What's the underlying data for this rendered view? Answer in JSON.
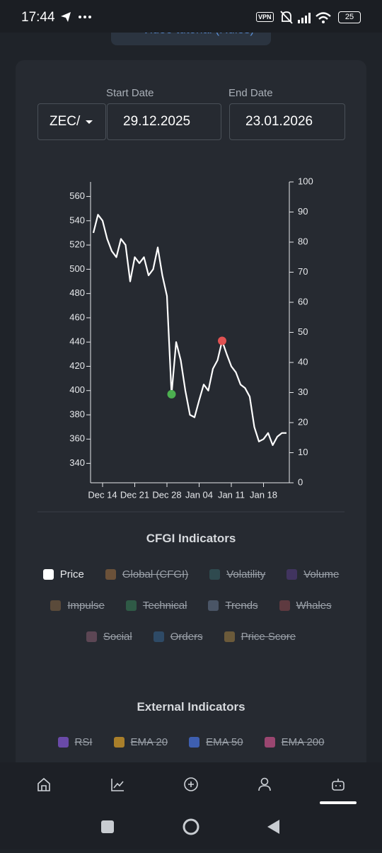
{
  "status_bar": {
    "time": "17:44",
    "vpn": "VPN",
    "battery": "25"
  },
  "tutorial_button": "Video tutorial (Rules)",
  "filters": {
    "pair": "ZEC/",
    "start_label": "Start Date",
    "start_value": "29.12.2025",
    "end_label": "End Date",
    "end_value": "23.01.2026"
  },
  "chart_data": {
    "type": "line",
    "categories": [
      null,
      null,
      "Dec 14",
      null,
      null,
      null,
      null,
      null,
      null,
      "Dec 21",
      null,
      null,
      null,
      null,
      null,
      null,
      "Dec 28",
      null,
      null,
      null,
      null,
      null,
      null,
      "Jan 04",
      null,
      null,
      null,
      null,
      null,
      null,
      "Jan 11",
      null,
      null,
      null,
      null,
      null,
      null,
      "Jan 18",
      null,
      null,
      null,
      null,
      null
    ],
    "series": [
      {
        "name": "Price",
        "color": "#ffffff",
        "values": [
          530,
          545,
          540,
          525,
          515,
          510,
          525,
          520,
          490,
          510,
          505,
          510,
          495,
          500,
          518,
          495,
          478,
          397,
          440,
          425,
          400,
          380,
          378,
          392,
          405,
          400,
          418,
          425,
          441,
          430,
          420,
          415,
          405,
          402,
          395,
          370,
          358,
          360,
          365,
          355,
          362,
          365,
          365
        ]
      },
      {
        "color": "#4caf50",
        "values": [
          null,
          null,
          null,
          null,
          null,
          null,
          null,
          null,
          null,
          null,
          null,
          null,
          null,
          null,
          null,
          null,
          null,
          397,
          null,
          null,
          null,
          null,
          null,
          null,
          null,
          null,
          null,
          null,
          null,
          null,
          null,
          null,
          null,
          null,
          null,
          null,
          null,
          null,
          null,
          null,
          null,
          null,
          null
        ]
      },
      {
        "color": "#e05252",
        "values": [
          null,
          null,
          null,
          null,
          null,
          null,
          null,
          null,
          null,
          null,
          null,
          null,
          null,
          null,
          null,
          null,
          null,
          null,
          null,
          null,
          null,
          null,
          null,
          null,
          null,
          null,
          null,
          null,
          441,
          null,
          null,
          null,
          null,
          null,
          null,
          null,
          null,
          null,
          null,
          null,
          null,
          null,
          null
        ]
      }
    ],
    "ylim": [
      324,
      572
    ],
    "yticks": [
      340,
      360,
      380,
      400,
      420,
      440,
      460,
      480,
      500,
      520,
      540,
      560
    ],
    "y2lim": [
      0,
      100
    ],
    "y2ticks": [
      0,
      10,
      20,
      30,
      40,
      50,
      60,
      70,
      80,
      90,
      100
    ],
    "legend_title": "CFGI Indicators",
    "hidden_series": [
      {
        "name": "Global (CFGI)",
        "color": "#6b5139"
      },
      {
        "name": "Volatility",
        "color": "#2f4a4f"
      },
      {
        "name": "Volume",
        "color": "#41345f"
      },
      {
        "name": "Impulse",
        "color": "#5a4a3a"
      },
      {
        "name": "Technical",
        "color": "#2f5a46"
      },
      {
        "name": "Trends",
        "color": "#4a5566"
      },
      {
        "name": "Whales",
        "color": "#5e3a40"
      },
      {
        "name": "Social",
        "color": "#5c4654"
      },
      {
        "name": "Orders",
        "color": "#2e4a66"
      },
      {
        "name": "Price Score",
        "color": "#6b5a3a"
      }
    ]
  },
  "external_indicators": {
    "title": "External Indicators",
    "items": [
      {
        "name": "RSI",
        "color": "#6a4aa8"
      },
      {
        "name": "EMA 20",
        "color": "#a97f2a"
      },
      {
        "name": "EMA 50",
        "color": "#3e5fb0"
      },
      {
        "name": "EMA 200",
        "color": "#9a4670"
      }
    ]
  }
}
